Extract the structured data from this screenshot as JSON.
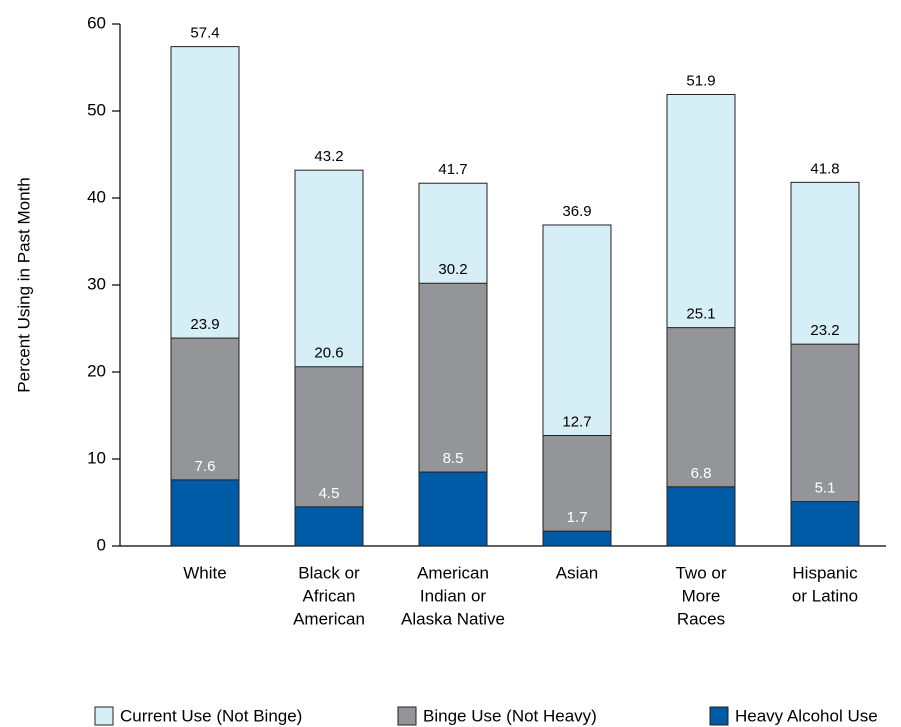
{
  "chart_data": {
    "type": "nested-bar",
    "y_label": "Percent Using in Past Month",
    "categories": [
      [
        "White"
      ],
      [
        "Black or",
        "African",
        "American"
      ],
      [
        "American",
        "Indian or",
        "Alaska Native"
      ],
      [
        "Asian"
      ],
      [
        "Two or",
        "More",
        "Races"
      ],
      [
        "Hispanic",
        "or Latino"
      ]
    ],
    "series": [
      {
        "name": "Current Use (Not Binge)",
        "color": "#d6eef6",
        "label_color": "#000000",
        "values": [
          57.4,
          43.2,
          41.7,
          36.9,
          51.9,
          41.8
        ]
      },
      {
        "name": "Binge Use (Not Heavy)",
        "color": "#939598",
        "label_color": "#000000",
        "values": [
          23.9,
          20.6,
          30.2,
          12.7,
          25.1,
          23.2
        ]
      },
      {
        "name": "Heavy Alcohol Use",
        "color": "#005ba6",
        "label_color": "#ffffff",
        "values": [
          7.6,
          4.5,
          8.5,
          1.7,
          6.8,
          5.1
        ]
      }
    ],
    "ylim": [
      0,
      60
    ],
    "yticks": [
      0,
      10,
      20,
      30,
      40,
      50,
      60
    ],
    "grid": false
  }
}
